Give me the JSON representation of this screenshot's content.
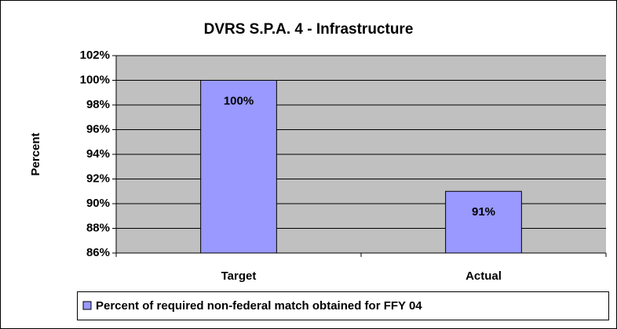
{
  "chart_data": {
    "type": "bar",
    "title": "DVRS S.P.A. 4 - Infrastructure",
    "y_label": "Percent",
    "categories": [
      "Target",
      "Actual"
    ],
    "series": [
      {
        "name": "Percent of required non-federal match obtained for FFY 04",
        "color": "#9999ff",
        "values": [
          100,
          91
        ],
        "value_labels": [
          "100%",
          "91%"
        ]
      }
    ],
    "ylim": [
      86,
      102
    ],
    "yticks": [
      {
        "value": 86,
        "label": "86%"
      },
      {
        "value": 88,
        "label": "88%"
      },
      {
        "value": 90,
        "label": "90%"
      },
      {
        "value": 92,
        "label": "92%"
      },
      {
        "value": 94,
        "label": "94%"
      },
      {
        "value": 96,
        "label": "96%"
      },
      {
        "value": 98,
        "label": "98%"
      },
      {
        "value": 100,
        "label": "100%"
      },
      {
        "value": 102,
        "label": "102%"
      }
    ],
    "grid": true,
    "legend": "bottom"
  }
}
